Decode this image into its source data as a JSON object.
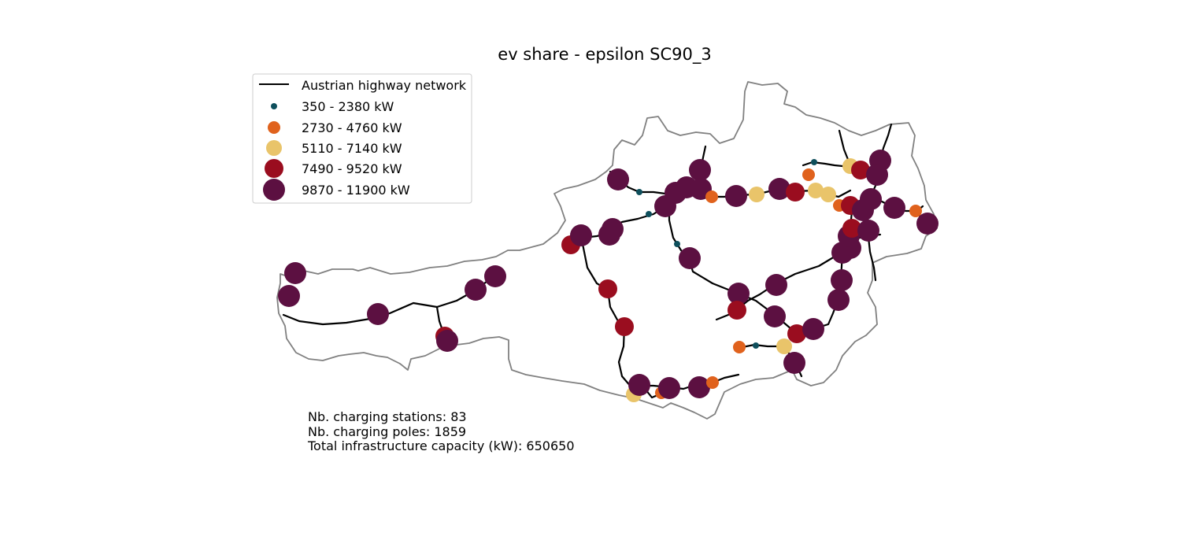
{
  "title": "ev share - epsilon SC90_3",
  "colors": {
    "border": "#808080",
    "highway": "#000000",
    "legend_frame": "#cccccc"
  },
  "legend": {
    "highway_label": "Austrian highway network",
    "classes": [
      {
        "label": "350 - 2380 kW",
        "color": "#0e4f5c",
        "size_class": 1
      },
      {
        "label": "2730 - 4760 kW",
        "color": "#e0621d",
        "size_class": 2
      },
      {
        "label": "5110 - 7140 kW",
        "color": "#e9c46a",
        "size_class": 3
      },
      {
        "label": "7490 - 9520 kW",
        "color": "#9a0d1f",
        "size_class": 4
      },
      {
        "label": "9870 - 11900 kW",
        "color": "#5c1041",
        "size_class": 5
      }
    ]
  },
  "stats": {
    "stations": "Nb. charging stations: 83",
    "poles": "Nb. charging poles: 1859",
    "capacity": "Total infrastructure capacity (kW): 650650"
  }
}
